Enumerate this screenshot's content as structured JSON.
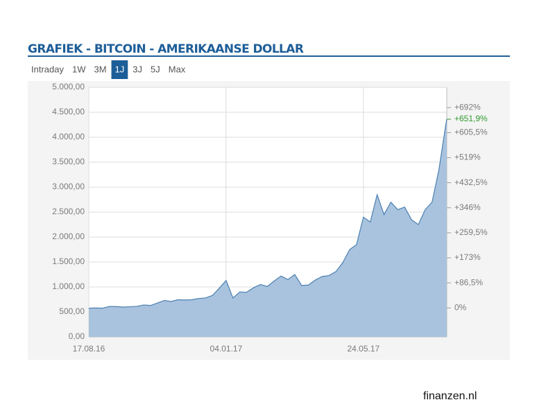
{
  "header": {
    "title": "GRAFIEK - BITCOIN - AMERIKAANSE DOLLAR"
  },
  "tabs": [
    "Intraday",
    "1W",
    "3M",
    "1J",
    "3J",
    "5J",
    "Max"
  ],
  "active_tab": 3,
  "chart_data": {
    "type": "area",
    "x": [
      "2016-08-17",
      "2016-08-24",
      "2016-08-31",
      "2016-09-07",
      "2016-09-14",
      "2016-09-21",
      "2016-09-28",
      "2016-10-05",
      "2016-10-12",
      "2016-10-19",
      "2016-10-26",
      "2016-11-02",
      "2016-11-09",
      "2016-11-16",
      "2016-11-23",
      "2016-11-30",
      "2016-12-07",
      "2016-12-14",
      "2016-12-21",
      "2016-12-28",
      "2017-01-04",
      "2017-01-11",
      "2017-01-18",
      "2017-01-25",
      "2017-02-01",
      "2017-02-08",
      "2017-02-15",
      "2017-02-22",
      "2017-03-01",
      "2017-03-08",
      "2017-03-15",
      "2017-03-22",
      "2017-03-29",
      "2017-04-05",
      "2017-04-12",
      "2017-04-19",
      "2017-04-26",
      "2017-05-03",
      "2017-05-10",
      "2017-05-17",
      "2017-05-24",
      "2017-05-31",
      "2017-06-07",
      "2017-06-14",
      "2017-06-21",
      "2017-06-28",
      "2017-07-05",
      "2017-07-12",
      "2017-07-19",
      "2017-07-26",
      "2017-08-02",
      "2017-08-09",
      "2017-08-16",
      "2017-08-17"
    ],
    "series": [
      {
        "color": "#4a7fb0",
        "fill": "#a9c3de",
        "values": [
          575,
          580,
          575,
          610,
          608,
          597,
          605,
          612,
          640,
          630,
          680,
          730,
          710,
          745,
          740,
          745,
          770,
          780,
          830,
          975,
          1130,
          780,
          900,
          895,
          985,
          1050,
          1010,
          1120,
          1220,
          1150,
          1250,
          1030,
          1040,
          1140,
          1210,
          1230,
          1310,
          1490,
          1750,
          1850,
          2400,
          2300,
          2850,
          2450,
          2700,
          2550,
          2600,
          2350,
          2250,
          2550,
          2700,
          3350,
          4250,
          4360
        ]
      }
    ],
    "xlim": [
      "2016-08-17",
      "2017-08-17"
    ],
    "xticks": [
      {
        "value": "2016-08-17",
        "label": "17.08.16"
      },
      {
        "value": "2017-01-04",
        "label": "04.01.17"
      },
      {
        "value": "2017-05-24",
        "label": "24.05.17"
      }
    ],
    "ylim": [
      0,
      5000
    ],
    "yticks": [
      {
        "value": 0,
        "label": "0,00"
      },
      {
        "value": 500,
        "label": "500,00"
      },
      {
        "value": 1000,
        "label": "1.000,00"
      },
      {
        "value": 1500,
        "label": "1.500,00"
      },
      {
        "value": 2000,
        "label": "2.000,00"
      },
      {
        "value": 2500,
        "label": "2.500,00"
      },
      {
        "value": 3000,
        "label": "3.000,00"
      },
      {
        "value": 3500,
        "label": "3.500,00"
      },
      {
        "value": 4000,
        "label": "4.000,00"
      },
      {
        "value": 4500,
        "label": "4.500,00"
      },
      {
        "value": 5000,
        "label": "5.000,00"
      }
    ],
    "y2lim": [
      -100,
      762
    ],
    "y2ticks": [
      {
        "value": 0,
        "label": "0%"
      },
      {
        "value": 86.5,
        "label": "+86,5%"
      },
      {
        "value": 173,
        "label": "+173%"
      },
      {
        "value": 259.5,
        "label": "+259,5%"
      },
      {
        "value": 346,
        "label": "+346%"
      },
      {
        "value": 432.5,
        "label": "+432,5%"
      },
      {
        "value": 519,
        "label": "+519%"
      },
      {
        "value": 605.5,
        "label": "+605,5%"
      },
      {
        "value": 692,
        "label": "+692%"
      }
    ],
    "current": {
      "value": 651.9,
      "label": "+651,9%",
      "color": "#2e9a2e"
    },
    "grid": true
  },
  "footer": "finanzen.nl"
}
